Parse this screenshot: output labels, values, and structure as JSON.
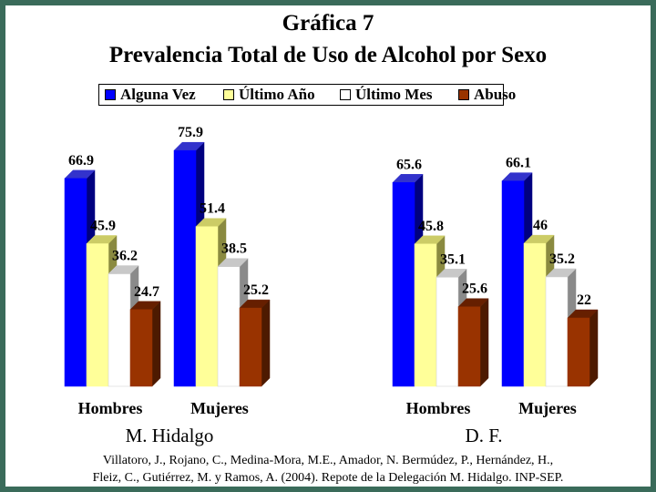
{
  "title_line1": "Gráfica 7",
  "title_line2": "Prevalencia Total de Uso de Alcohol por Sexo",
  "footnote_line1": "Villatoro, J., Rojano, C., Medina-Mora, M.E., Amador, N. Bermúdez, P., Hernández, H.,",
  "footnote_line2": "Fleiz, C., Gutiérrez, M. y Ramos, A. (2004). Repote de la Delegación M. Hidalgo. INP-SEP.",
  "chart_data": {
    "type": "bar",
    "legend_position": "top",
    "grid": false,
    "ylim": [
      0,
      100
    ],
    "series": [
      {
        "name": "Alguna Vez",
        "color": "#0000ff",
        "side_color": "#000080",
        "top_color": "#3333cc"
      },
      {
        "name": "Último Año",
        "color": "#ffff99",
        "side_color": "#8a8a40",
        "top_color": "#cccc66"
      },
      {
        "name": "Último Mes",
        "color": "#ffffff",
        "side_color": "#8a8a8a",
        "top_color": "#c8c8c8"
      },
      {
        "name": "Abuso",
        "color": "#993300",
        "side_color": "#4d1a00",
        "top_color": "#661f00"
      }
    ],
    "groups": [
      {
        "name": "M. Hidalgo",
        "categories": [
          {
            "label": "Hombres",
            "values": [
              66.9,
              45.9,
              36.2,
              24.7
            ],
            "value_labels": [
              "66.9",
              "45.9",
              "36.2",
              "24.7"
            ]
          },
          {
            "label": "Mujeres",
            "values": [
              75.9,
              51.4,
              38.5,
              25.2
            ],
            "value_labels": [
              "75.9",
              "51.4",
              "38.5",
              "25.2"
            ]
          }
        ]
      },
      {
        "name": "D. F.",
        "categories": [
          {
            "label": "Hombres",
            "values": [
              65.6,
              45.8,
              35.1,
              25.6
            ],
            "value_labels": [
              "65.6",
              "45.8",
              "35.1",
              "25.6"
            ]
          },
          {
            "label": "Mujeres",
            "values": [
              66.1,
              46,
              35.2,
              22
            ],
            "value_labels": [
              "66.1",
              "46",
              "35.2",
              "22"
            ]
          }
        ]
      }
    ]
  }
}
